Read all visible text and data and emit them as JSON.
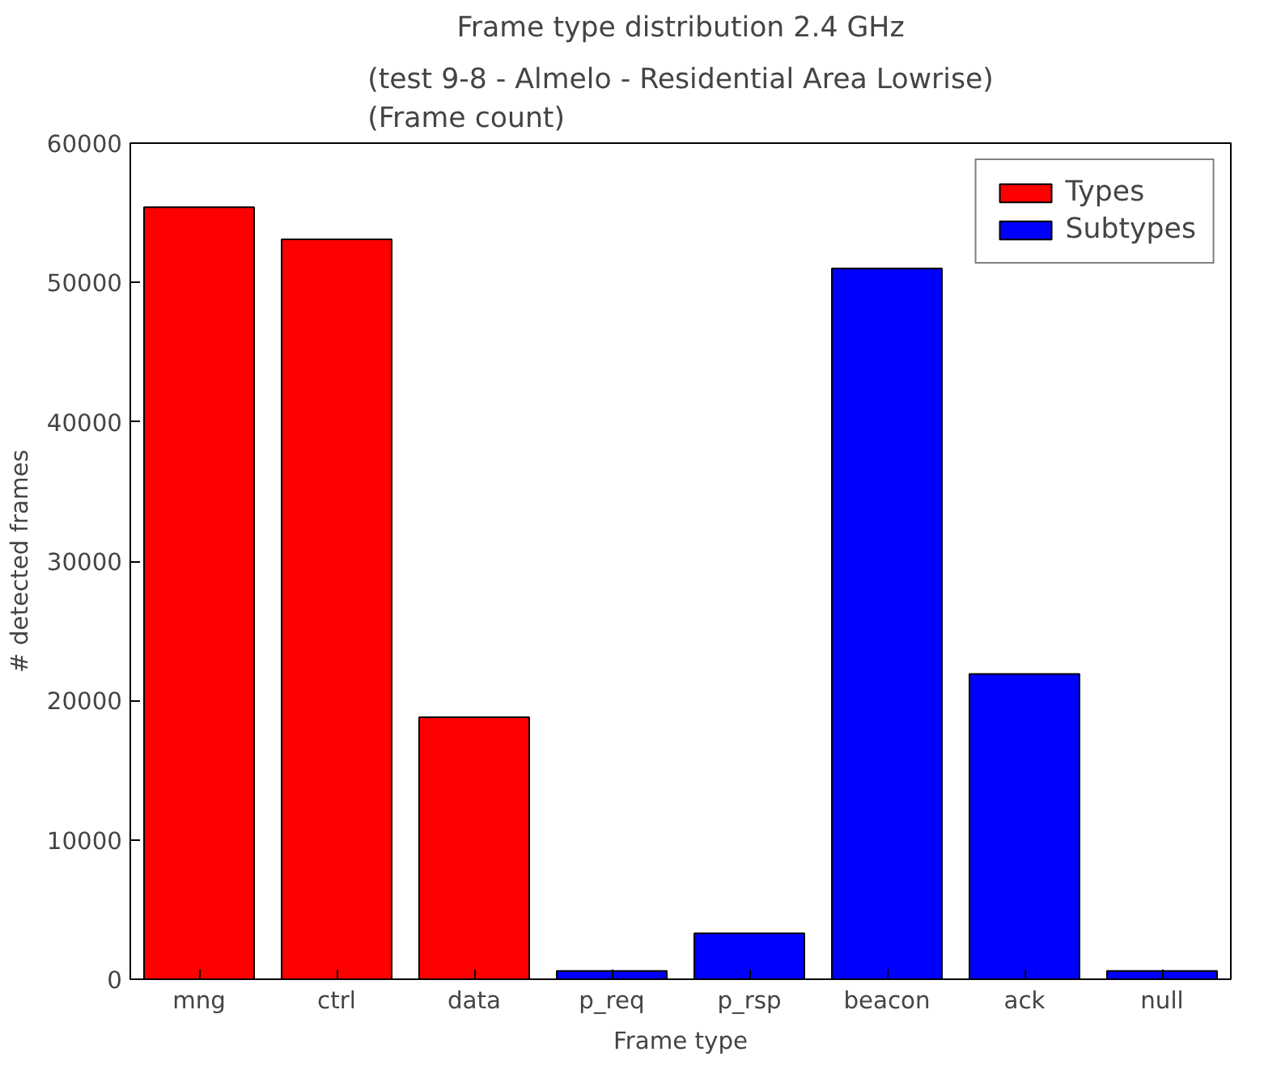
{
  "chart_data": {
    "type": "bar",
    "title": "Frame type distribution 2.4 GHz",
    "subtitle": "(test 9-8 - Almelo - Residential Area Lowrise)\n(Frame count)",
    "xlabel": "Frame type",
    "ylabel": "# detected frames",
    "categories": [
      "mng",
      "ctrl",
      "data",
      "p_req",
      "p_rsp",
      "beacon",
      "ack",
      "null"
    ],
    "series": [
      {
        "name": "Types",
        "color": "#ff0000",
        "values": [
          55400,
          53100,
          18800,
          null,
          null,
          null,
          null,
          null
        ]
      },
      {
        "name": "Subtypes",
        "color": "#0000ff",
        "values": [
          null,
          null,
          null,
          600,
          3300,
          51000,
          21900,
          600
        ]
      }
    ],
    "ylim": [
      0,
      60000
    ],
    "yticks": [
      0,
      10000,
      20000,
      30000,
      40000,
      50000,
      60000
    ],
    "grid": false,
    "legend": "top right"
  }
}
